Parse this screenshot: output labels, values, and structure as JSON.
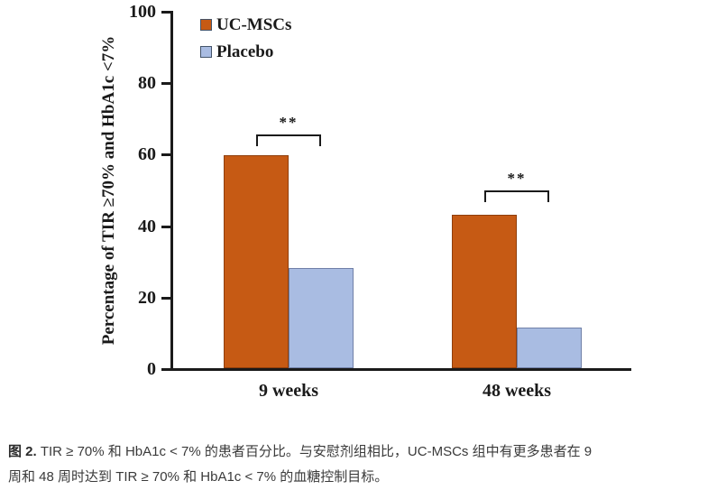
{
  "chart_data": {
    "type": "bar",
    "title": "",
    "categories": [
      "9 weeks",
      "48 weeks"
    ],
    "series": [
      {
        "name": "UC-MSCs",
        "color": "#C65A14",
        "border_color": "#8F3E0C",
        "values": [
          59.5,
          43.0
        ]
      },
      {
        "name": "Placebo",
        "color": "#A9BCE2",
        "border_color": "#7080A8",
        "values": [
          28.0,
          11.3
        ]
      }
    ],
    "xlabel": "",
    "ylabel": "Percentage of TIR ≥70% and HbA1c <7%",
    "ylim": [
      0,
      100
    ],
    "yticks": [
      0,
      20,
      40,
      60,
      80,
      100
    ],
    "grid": false,
    "legend_position": "top-left-inside",
    "annotations": [
      {
        "group": "9 weeks",
        "label": "**"
      },
      {
        "group": "48 weeks",
        "label": "**"
      }
    ],
    "axis_color": "#1a1a1a"
  },
  "caption": {
    "label": "图 2.",
    "line1": " TIR ≥ 70% 和 HbA1c < 7% 的患者百分比。与安慰剂组相比，UC-MSCs 组中有更多患者在 9",
    "line2": "周和 48 周时达到 TIR ≥ 70% 和 HbA1c < 7% 的血糖控制目标。"
  }
}
